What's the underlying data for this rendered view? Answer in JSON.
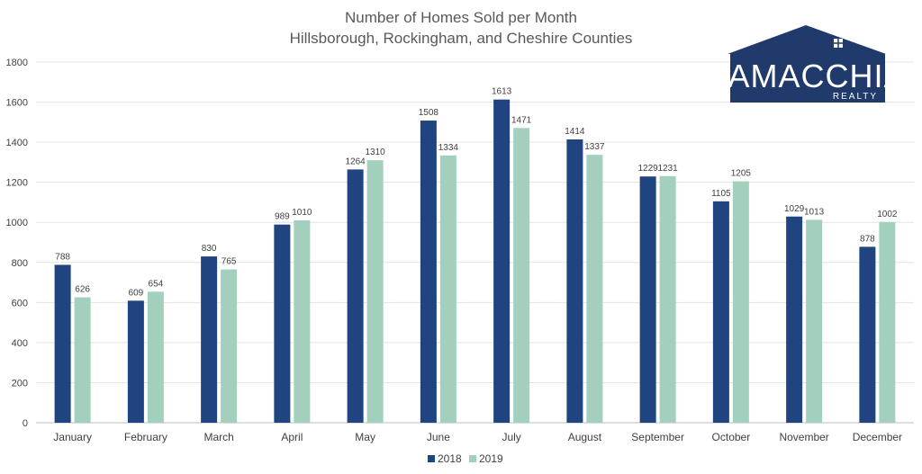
{
  "chart_data": {
    "type": "bar",
    "title_lines": [
      "Number of Homes Sold per Month",
      "Hillsborough, Rockingham, and Cheshire Counties"
    ],
    "categories": [
      "January",
      "February",
      "March",
      "April",
      "May",
      "June",
      "July",
      "August",
      "September",
      "October",
      "November",
      "December"
    ],
    "series": [
      {
        "name": "2018",
        "color": "#1f4480",
        "values": [
          788,
          609,
          830,
          989,
          1264,
          1508,
          1613,
          1414,
          1229,
          1105,
          1029,
          878
        ]
      },
      {
        "name": "2019",
        "color": "#a3d0bc",
        "values": [
          626,
          654,
          765,
          1010,
          1310,
          1334,
          1471,
          1337,
          1231,
          1205,
          1013,
          1002
        ]
      }
    ],
    "ylim": [
      0,
      1800
    ],
    "yticks": [
      0,
      200,
      400,
      600,
      800,
      1000,
      1200,
      1400,
      1600,
      1800
    ],
    "grid": true,
    "legend_position": "bottom",
    "data_labels": true
  },
  "logo": {
    "name": "LAMACCHIA",
    "subtitle": "REALTY",
    "color": "#1f3a6b"
  }
}
